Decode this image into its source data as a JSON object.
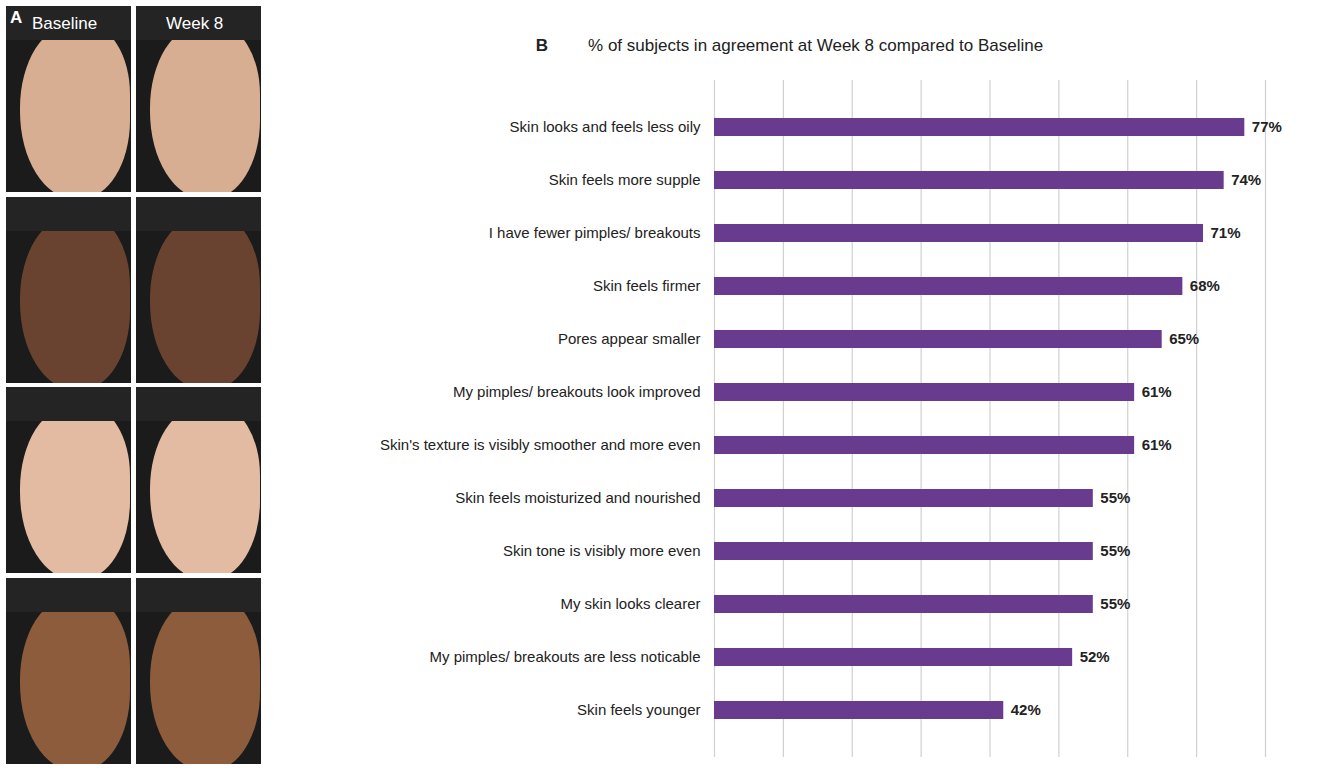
{
  "panel_a": {
    "label": "A",
    "columns": [
      "Baseline",
      "Week 8"
    ],
    "rows": 4
  },
  "chart_data": {
    "type": "bar",
    "panel": "B",
    "title": "% of subjects in agreement at Week 8 compared to Baseline",
    "orientation": "horizontal",
    "categories": [
      "Skin looks and feels less oily",
      "Skin feels more supple",
      "I have fewer pimples/ breakouts",
      "Skin feels firmer",
      "Pores appear smaller",
      "My pimples/ breakouts look improved",
      "Skin's texture is visibly smoother and more even",
      "Skin feels moisturized and nourished",
      "Skin tone is visibly more even",
      "My skin looks clearer",
      "My pimples/ breakouts are less noticable",
      "Skin feels younger"
    ],
    "values": [
      77,
      74,
      71,
      68,
      65,
      61,
      61,
      55,
      55,
      55,
      52,
      42
    ],
    "value_labels": [
      "77%",
      "74%",
      "71%",
      "68%",
      "65%",
      "61%",
      "61%",
      "55%",
      "55%",
      "55%",
      "52%",
      "42%"
    ],
    "color": "#693b8e",
    "xlim": [
      0,
      80
    ],
    "xticks": [
      0,
      10,
      20,
      30,
      40,
      50,
      60,
      70,
      80
    ],
    "grid": true,
    "data_labels": true,
    "tick_labels": "y"
  }
}
